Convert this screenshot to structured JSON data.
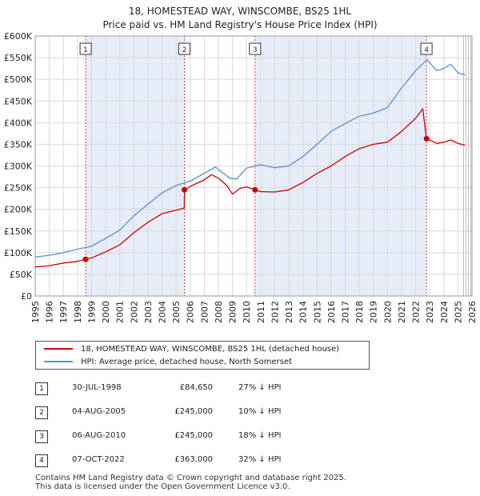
{
  "title_line1": "18, HOMESTEAD WAY, WINSCOMBE, BS25 1HL",
  "title_line2": "Price paid vs. HM Land Registry's House Price Index (HPI)",
  "colors": {
    "property": "#cc0000",
    "hpi": "#5b8fd0",
    "shade": "#e6ecf8",
    "grid": "#d8d8d8",
    "marker_line": "#dd4444"
  },
  "legend": {
    "property_label": "18, HOMESTEAD WAY, WINSCOMBE, BS25 1HL (detached house)",
    "hpi_label": "HPI: Average price, detached house, North Somerset"
  },
  "sales": [
    {
      "num": "1",
      "date": "30-JUL-1998",
      "price": "£84,650",
      "hpi": "27% ↓ HPI"
    },
    {
      "num": "2",
      "date": "04-AUG-2005",
      "price": "£245,000",
      "hpi": "10% ↓ HPI"
    },
    {
      "num": "3",
      "date": "06-AUG-2010",
      "price": "£245,000",
      "hpi": "18% ↓ HPI"
    },
    {
      "num": "4",
      "date": "07-OCT-2022",
      "price": "£363,000",
      "hpi": "32% ↓ HPI"
    }
  ],
  "footer_line1": "Contains HM Land Registry data © Crown copyright and database right 2025.",
  "footer_line2": "This data is licensed under the Open Government Licence v3.0.",
  "chart_data": {
    "type": "line",
    "title": "Price paid vs. HM Land Registry's House Price Index (HPI)",
    "xlabel": "",
    "ylabel": "",
    "xlim": [
      1995,
      2026
    ],
    "ylim": [
      0,
      600000
    ],
    "x_ticks": [
      1995,
      1996,
      1997,
      1998,
      1999,
      2000,
      2001,
      2002,
      2003,
      2004,
      2005,
      2006,
      2007,
      2008,
      2009,
      2010,
      2011,
      2012,
      2013,
      2014,
      2015,
      2016,
      2017,
      2018,
      2019,
      2020,
      2021,
      2022,
      2023,
      2024,
      2025,
      2026
    ],
    "y_ticks": [
      0,
      50000,
      100000,
      150000,
      200000,
      250000,
      300000,
      350000,
      400000,
      450000,
      500000,
      550000,
      600000
    ],
    "y_tick_labels": [
      "£0",
      "£50K",
      "£100K",
      "£150K",
      "£200K",
      "£250K",
      "£300K",
      "£350K",
      "£400K",
      "£450K",
      "£500K",
      "£550K",
      "£600K"
    ],
    "grid": true,
    "shaded_periods": [
      [
        1998.58,
        2005.59
      ],
      [
        2010.6,
        2022.77
      ]
    ],
    "series": [
      {
        "name": "18, HOMESTEAD WAY, WINSCOMBE, BS25 1HL (detached house)",
        "color": "#cc0000",
        "points": [
          [
            1995,
            67000
          ],
          [
            1996,
            70000
          ],
          [
            1997,
            76000
          ],
          [
            1998,
            80000
          ],
          [
            1998.58,
            84650
          ],
          [
            1999,
            88000
          ],
          [
            2000,
            102000
          ],
          [
            2001,
            118000
          ],
          [
            2002,
            146000
          ],
          [
            2003,
            170000
          ],
          [
            2004,
            190000
          ],
          [
            2005,
            198000
          ],
          [
            2005.58,
            203000
          ],
          [
            2005.6,
            245000
          ],
          [
            2006,
            253000
          ],
          [
            2007,
            268000
          ],
          [
            2007.5,
            280000
          ],
          [
            2008,
            272000
          ],
          [
            2008.6,
            255000
          ],
          [
            2009,
            235000
          ],
          [
            2009.5,
            248000
          ],
          [
            2010,
            252000
          ],
          [
            2010.6,
            245000
          ],
          [
            2011,
            241000
          ],
          [
            2012,
            240000
          ],
          [
            2013,
            245000
          ],
          [
            2014,
            262000
          ],
          [
            2015,
            283000
          ],
          [
            2016,
            300000
          ],
          [
            2017,
            322000
          ],
          [
            2018,
            340000
          ],
          [
            2019,
            350000
          ],
          [
            2020,
            355000
          ],
          [
            2021,
            380000
          ],
          [
            2022,
            410000
          ],
          [
            2022.5,
            432000
          ],
          [
            2022.77,
            363000
          ],
          [
            2023,
            360000
          ],
          [
            2023.5,
            352000
          ],
          [
            2024,
            355000
          ],
          [
            2024.5,
            360000
          ],
          [
            2025,
            352000
          ],
          [
            2025.5,
            348000
          ]
        ]
      },
      {
        "name": "HPI: Average price, detached house, North Somerset",
        "color": "#5b8fd0",
        "points": [
          [
            1995,
            90000
          ],
          [
            1996,
            94000
          ],
          [
            1997,
            100000
          ],
          [
            1998,
            108000
          ],
          [
            1999,
            115000
          ],
          [
            2000,
            133000
          ],
          [
            2001,
            152000
          ],
          [
            2002,
            185000
          ],
          [
            2003,
            212000
          ],
          [
            2004,
            238000
          ],
          [
            2005,
            255000
          ],
          [
            2006,
            265000
          ],
          [
            2007,
            283000
          ],
          [
            2007.8,
            298000
          ],
          [
            2008,
            292000
          ],
          [
            2008.8,
            272000
          ],
          [
            2009.3,
            270000
          ],
          [
            2010,
            295000
          ],
          [
            2011,
            303000
          ],
          [
            2012,
            296000
          ],
          [
            2013,
            300000
          ],
          [
            2014,
            322000
          ],
          [
            2015,
            350000
          ],
          [
            2016,
            380000
          ],
          [
            2017,
            398000
          ],
          [
            2018,
            415000
          ],
          [
            2019,
            422000
          ],
          [
            2020,
            435000
          ],
          [
            2021,
            480000
          ],
          [
            2022,
            520000
          ],
          [
            2022.8,
            545000
          ],
          [
            2023,
            538000
          ],
          [
            2023.5,
            520000
          ],
          [
            2024,
            525000
          ],
          [
            2024.5,
            535000
          ],
          [
            2025,
            515000
          ],
          [
            2025.5,
            510000
          ]
        ]
      }
    ],
    "sale_markers": [
      {
        "label": "1",
        "x": 1998.58,
        "y": 84650
      },
      {
        "label": "2",
        "x": 2005.59,
        "y": 245000
      },
      {
        "label": "3",
        "x": 2010.6,
        "y": 245000
      },
      {
        "label": "4",
        "x": 2022.77,
        "y": 363000
      }
    ],
    "forecast_start": 2025.0
  }
}
